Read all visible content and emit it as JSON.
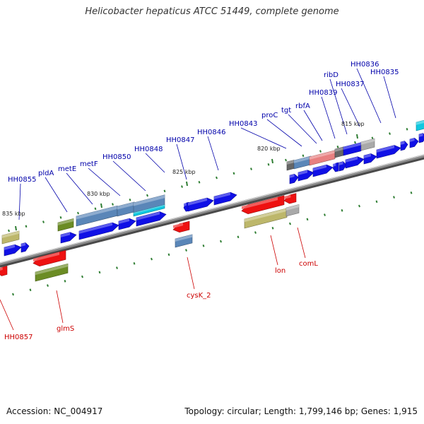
{
  "title": "Helicobacter hepaticus ATCC 51449, complete genome",
  "footer": {
    "accession": "Accession: NC_004917",
    "topology": "Topology: circular; Length: 1,799,146 bp; Genes: 1,915"
  },
  "colors": {
    "forward_label": "#0000aa",
    "reverse_label": "#cc0000",
    "tick": "#2e7d32",
    "backbone": "#8a8a8a"
  },
  "tick_labels": [
    "815 kbp",
    "820 kbp",
    "825 kbp",
    "830 kbp",
    "835 kbp"
  ],
  "upper_labels": [
    "HH0836",
    "HH0835",
    "ribD",
    "HH0837",
    "HH0839",
    "rbfA",
    "tgt",
    "proC",
    "HH0843",
    "HH0846",
    "HH0847",
    "HH0848",
    "HH0850",
    "metF",
    "metE",
    "pldA",
    "HH0855"
  ],
  "lower_labels": [
    "lon",
    "comL",
    "cysK_2",
    "glmS",
    "HH0857"
  ]
}
